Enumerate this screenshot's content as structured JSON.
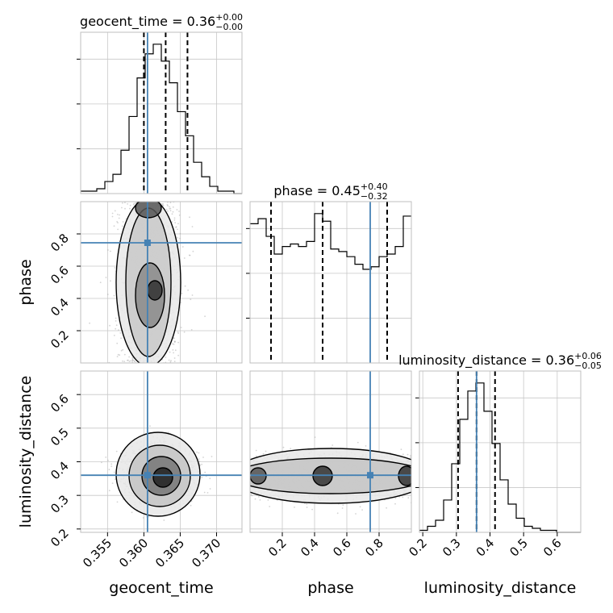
{
  "chart_data": {
    "type": "corner",
    "parameters": [
      "geocent_time",
      "phase",
      "luminosity_distance"
    ],
    "truths": {
      "geocent_time": 0.3605,
      "phase": 0.745,
      "luminosity_distance": 0.36
    },
    "truth_color": "#4682b4",
    "ranges": {
      "geocent_time": [
        0.3513,
        0.3735
      ],
      "phase": [
        0.0,
        1.0
      ],
      "luminosity_distance": [
        0.19,
        0.67
      ]
    },
    "titles": [
      {
        "param": "geocent_time",
        "main": "geocent_time = 0.36",
        "plus": "+0.00",
        "minus": "−0.00"
      },
      {
        "param": "phase",
        "main": "phase = 0.45",
        "plus": "+0.40",
        "minus": "−0.32"
      },
      {
        "param": "luminosity_distance",
        "main": "luminosity_distance = 0.36",
        "plus": "+0.06",
        "minus": "−0.05"
      }
    ],
    "quantiles": {
      "geocent_time": [
        0.36,
        0.363,
        0.366
      ],
      "phase": [
        0.13,
        0.45,
        0.85
      ],
      "luminosity_distance": [
        0.305,
        0.36,
        0.415
      ]
    },
    "xticks": {
      "geocent_time": [
        "0.355",
        "0.360",
        "0.365",
        "0.370"
      ],
      "phase": [
        "0.2",
        "0.4",
        "0.6",
        "0.8"
      ],
      "luminosity_distance": [
        "0.2",
        "0.3",
        "0.4",
        "0.5",
        "0.6"
      ]
    },
    "yticks": {
      "phase": [
        "0.2",
        "0.4",
        "0.6",
        "0.8"
      ],
      "luminosity_distance": [
        "0.2",
        "0.3",
        "0.4",
        "0.5",
        "0.6"
      ]
    },
    "histograms": {
      "geocent_time": {
        "range": [
          0.3513,
          0.3735
        ],
        "counts": [
          1,
          1,
          2,
          5,
          8,
          18,
          32,
          48,
          58,
          62,
          55,
          46,
          34,
          24,
          13,
          7,
          3,
          1,
          1,
          0
        ]
      },
      "phase": {
        "range": [
          0.0,
          1.0
        ],
        "counts": [
          55,
          57,
          50,
          43,
          46,
          47,
          46,
          48,
          59,
          56,
          45,
          44,
          42,
          39,
          37,
          38,
          42,
          43,
          46,
          58
        ]
      },
      "luminosity_distance": {
        "range": [
          0.19,
          0.67
        ],
        "counts": [
          1,
          3,
          6,
          16,
          34,
          56,
          70,
          74,
          60,
          44,
          26,
          14,
          7,
          3,
          2,
          1,
          1,
          0,
          0,
          0
        ]
      }
    },
    "grid": true,
    "show_datapoints": true,
    "contours": true
  }
}
